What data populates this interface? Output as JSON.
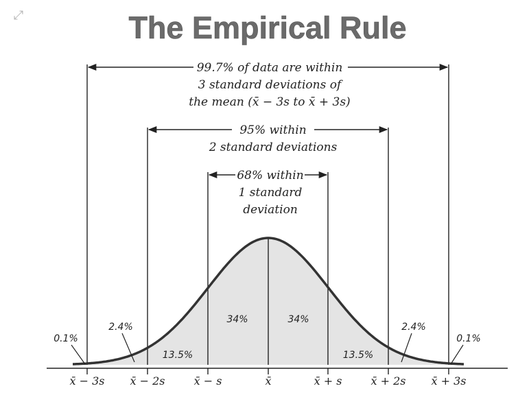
{
  "title": "The Empirical Rule",
  "icons": {
    "expand": "expand-icon"
  },
  "annotations": {
    "three_sd": [
      "99.7% of data are within",
      "3 standard deviations of",
      "the mean (x̄ − 3s to x̄ + 3s)"
    ],
    "two_sd": [
      "95% within",
      "2 standard deviations"
    ],
    "one_sd": [
      "68% within",
      "1 standard",
      "deviation"
    ]
  },
  "regions": {
    "left_inner": "34%",
    "right_inner": "34%",
    "left_mid": "13.5%",
    "right_mid": "13.5%",
    "left_outer": "2.4%",
    "right_outer": "2.4%",
    "left_tail": "0.1%",
    "right_tail": "0.1%"
  },
  "axis_labels": [
    "x̄ − 3s",
    "x̄ − 2s",
    "x̄ − s",
    "x̄",
    "x̄ + s",
    "x̄ + 2s",
    "x̄ + 3s"
  ],
  "colors": {
    "fill": "#e4e4e4",
    "curve": "#333333",
    "title": "#6b6b6b"
  }
}
